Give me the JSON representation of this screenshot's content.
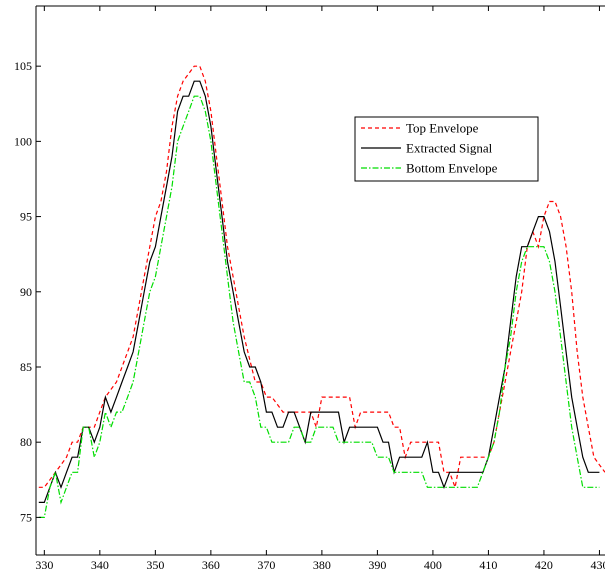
{
  "chart_data": {
    "type": "line",
    "title": "",
    "xlabel": "",
    "ylabel": "",
    "xlim": [
      328.5,
      431
    ],
    "ylim": [
      72.5,
      109
    ],
    "xticks": [
      330,
      340,
      350,
      360,
      370,
      380,
      390,
      400,
      410,
      420,
      430
    ],
    "xtick_labels": [
      "330",
      "340",
      "350",
      "360",
      "370",
      "380",
      "390",
      "400",
      "410",
      "420",
      "430"
    ],
    "yticks": [
      75,
      80,
      85,
      90,
      95,
      100,
      105
    ],
    "ytick_labels": [
      "75",
      "80",
      "85",
      "90",
      "95",
      "100",
      "105"
    ],
    "grid": false,
    "legend_position": "upper-right-center",
    "series": [
      {
        "name": "Top Envelope",
        "color": "#ff0000",
        "style": "dashed",
        "points": [
          [
            329,
            77
          ],
          [
            330,
            77
          ],
          [
            331,
            77.5
          ],
          [
            332,
            78
          ],
          [
            333,
            78.5
          ],
          [
            334,
            79
          ],
          [
            335,
            80
          ],
          [
            336,
            80
          ],
          [
            337,
            81
          ],
          [
            338,
            81
          ],
          [
            339,
            81
          ],
          [
            340,
            82
          ],
          [
            341,
            83
          ],
          [
            342,
            83.5
          ],
          [
            343,
            84
          ],
          [
            344,
            85
          ],
          [
            345,
            86
          ],
          [
            346,
            87
          ],
          [
            347,
            89
          ],
          [
            348,
            91
          ],
          [
            349,
            93
          ],
          [
            350,
            95
          ],
          [
            351,
            96
          ],
          [
            352,
            98
          ],
          [
            353,
            101
          ],
          [
            354,
            103
          ],
          [
            355,
            104
          ],
          [
            356,
            104.5
          ],
          [
            357,
            105
          ],
          [
            358,
            105
          ],
          [
            359,
            104
          ],
          [
            360,
            102
          ],
          [
            361,
            99
          ],
          [
            362,
            96
          ],
          [
            363,
            93
          ],
          [
            364,
            91
          ],
          [
            365,
            89
          ],
          [
            366,
            87
          ],
          [
            367,
            85.5
          ],
          [
            368,
            84
          ],
          [
            369,
            84
          ],
          [
            370,
            83
          ],
          [
            371,
            83
          ],
          [
            372,
            82.5
          ],
          [
            373,
            82
          ],
          [
            374,
            82
          ],
          [
            375,
            82
          ],
          [
            376,
            82
          ],
          [
            377,
            82
          ],
          [
            378,
            82
          ],
          [
            379,
            81
          ],
          [
            380,
            83
          ],
          [
            381,
            83
          ],
          [
            382,
            83
          ],
          [
            383,
            83
          ],
          [
            384,
            83
          ],
          [
            385,
            83
          ],
          [
            386,
            81
          ],
          [
            387,
            82
          ],
          [
            388,
            82
          ],
          [
            389,
            82
          ],
          [
            390,
            82
          ],
          [
            391,
            82
          ],
          [
            392,
            82
          ],
          [
            393,
            81
          ],
          [
            394,
            81
          ],
          [
            395,
            79
          ],
          [
            396,
            80
          ],
          [
            397,
            80
          ],
          [
            398,
            80
          ],
          [
            399,
            80
          ],
          [
            400,
            80
          ],
          [
            401,
            80
          ],
          [
            402,
            78
          ],
          [
            403,
            78
          ],
          [
            404,
            77
          ],
          [
            405,
            79
          ],
          [
            406,
            79
          ],
          [
            407,
            79
          ],
          [
            408,
            79
          ],
          [
            409,
            79
          ],
          [
            410,
            79
          ],
          [
            411,
            80
          ],
          [
            412,
            82
          ],
          [
            413,
            84
          ],
          [
            414,
            86
          ],
          [
            415,
            88
          ],
          [
            416,
            90
          ],
          [
            417,
            93
          ],
          [
            418,
            94
          ],
          [
            419,
            93
          ],
          [
            420,
            95
          ],
          [
            421,
            96
          ],
          [
            422,
            96
          ],
          [
            423,
            95
          ],
          [
            424,
            93
          ],
          [
            425,
            90
          ],
          [
            426,
            86
          ],
          [
            427,
            83
          ],
          [
            428,
            81
          ],
          [
            429,
            79
          ],
          [
            430,
            78.5
          ],
          [
            431,
            78
          ]
        ]
      },
      {
        "name": "Extracted Signal",
        "color": "#000000",
        "style": "solid",
        "points": [
          [
            329,
            76
          ],
          [
            330,
            76
          ],
          [
            331,
            77
          ],
          [
            332,
            78
          ],
          [
            333,
            77
          ],
          [
            334,
            78
          ],
          [
            335,
            79
          ],
          [
            336,
            79
          ],
          [
            337,
            81
          ],
          [
            338,
            81
          ],
          [
            339,
            80
          ],
          [
            340,
            81
          ],
          [
            341,
            83
          ],
          [
            342,
            82
          ],
          [
            343,
            83
          ],
          [
            344,
            84
          ],
          [
            345,
            85
          ],
          [
            346,
            86
          ],
          [
            347,
            88
          ],
          [
            348,
            90
          ],
          [
            349,
            92
          ],
          [
            350,
            93
          ],
          [
            351,
            95
          ],
          [
            352,
            97
          ],
          [
            353,
            99
          ],
          [
            354,
            102
          ],
          [
            355,
            103
          ],
          [
            356,
            103
          ],
          [
            357,
            104
          ],
          [
            358,
            104
          ],
          [
            359,
            103
          ],
          [
            360,
            101
          ],
          [
            361,
            98
          ],
          [
            362,
            95
          ],
          [
            363,
            92
          ],
          [
            364,
            90
          ],
          [
            365,
            88
          ],
          [
            366,
            86
          ],
          [
            367,
            85
          ],
          [
            368,
            85
          ],
          [
            369,
            84
          ],
          [
            370,
            82
          ],
          [
            371,
            82
          ],
          [
            372,
            81
          ],
          [
            373,
            81
          ],
          [
            374,
            82
          ],
          [
            375,
            82
          ],
          [
            376,
            81
          ],
          [
            377,
            80
          ],
          [
            378,
            82
          ],
          [
            379,
            82
          ],
          [
            380,
            82
          ],
          [
            381,
            82
          ],
          [
            382,
            82
          ],
          [
            383,
            82
          ],
          [
            384,
            80
          ],
          [
            385,
            81
          ],
          [
            386,
            81
          ],
          [
            387,
            81
          ],
          [
            388,
            81
          ],
          [
            389,
            81
          ],
          [
            390,
            81
          ],
          [
            391,
            80
          ],
          [
            392,
            80
          ],
          [
            393,
            78
          ],
          [
            394,
            79
          ],
          [
            395,
            79
          ],
          [
            396,
            79
          ],
          [
            397,
            79
          ],
          [
            398,
            79
          ],
          [
            399,
            80
          ],
          [
            400,
            78
          ],
          [
            401,
            78
          ],
          [
            402,
            77
          ],
          [
            403,
            78
          ],
          [
            404,
            78
          ],
          [
            405,
            78
          ],
          [
            406,
            78
          ],
          [
            407,
            78
          ],
          [
            408,
            78
          ],
          [
            409,
            78
          ],
          [
            410,
            79
          ],
          [
            411,
            81
          ],
          [
            412,
            83
          ],
          [
            413,
            85
          ],
          [
            414,
            88
          ],
          [
            415,
            91
          ],
          [
            416,
            93
          ],
          [
            417,
            93
          ],
          [
            418,
            94
          ],
          [
            419,
            95
          ],
          [
            420,
            95
          ],
          [
            421,
            94
          ],
          [
            422,
            92
          ],
          [
            423,
            89
          ],
          [
            424,
            86
          ],
          [
            425,
            83
          ],
          [
            426,
            81
          ],
          [
            427,
            79
          ],
          [
            428,
            78
          ],
          [
            429,
            78
          ],
          [
            430,
            78
          ]
        ]
      },
      {
        "name": "Bottom Envelope",
        "color": "#00dd00",
        "style": "dashdot",
        "points": [
          [
            329,
            75
          ],
          [
            330,
            75
          ],
          [
            331,
            77
          ],
          [
            332,
            78
          ],
          [
            333,
            76
          ],
          [
            334,
            77
          ],
          [
            335,
            78
          ],
          [
            336,
            78
          ],
          [
            337,
            81
          ],
          [
            338,
            81
          ],
          [
            339,
            79
          ],
          [
            340,
            80
          ],
          [
            341,
            82
          ],
          [
            342,
            81
          ],
          [
            343,
            82
          ],
          [
            344,
            82
          ],
          [
            345,
            83
          ],
          [
            346,
            84
          ],
          [
            347,
            86
          ],
          [
            348,
            88
          ],
          [
            349,
            90
          ],
          [
            350,
            91
          ],
          [
            351,
            93
          ],
          [
            352,
            95
          ],
          [
            353,
            97
          ],
          [
            354,
            100
          ],
          [
            355,
            101
          ],
          [
            356,
            102
          ],
          [
            357,
            103
          ],
          [
            358,
            103
          ],
          [
            359,
            102
          ],
          [
            360,
            100
          ],
          [
            361,
            97
          ],
          [
            362,
            94
          ],
          [
            363,
            91
          ],
          [
            364,
            88
          ],
          [
            365,
            86
          ],
          [
            366,
            84
          ],
          [
            367,
            84
          ],
          [
            368,
            83
          ],
          [
            369,
            81
          ],
          [
            370,
            81
          ],
          [
            371,
            80
          ],
          [
            372,
            80
          ],
          [
            373,
            80
          ],
          [
            374,
            80
          ],
          [
            375,
            81
          ],
          [
            376,
            81
          ],
          [
            377,
            80
          ],
          [
            378,
            80
          ],
          [
            379,
            81
          ],
          [
            380,
            81
          ],
          [
            381,
            81
          ],
          [
            382,
            81
          ],
          [
            383,
            80
          ],
          [
            384,
            80
          ],
          [
            385,
            80
          ],
          [
            386,
            80
          ],
          [
            387,
            80
          ],
          [
            388,
            80
          ],
          [
            389,
            80
          ],
          [
            390,
            79
          ],
          [
            391,
            79
          ],
          [
            392,
            79
          ],
          [
            393,
            78
          ],
          [
            394,
            78
          ],
          [
            395,
            78
          ],
          [
            396,
            78
          ],
          [
            397,
            78
          ],
          [
            398,
            78
          ],
          [
            399,
            77
          ],
          [
            400,
            77
          ],
          [
            401,
            77
          ],
          [
            402,
            77
          ],
          [
            403,
            77
          ],
          [
            404,
            77
          ],
          [
            405,
            77
          ],
          [
            406,
            77
          ],
          [
            407,
            77
          ],
          [
            408,
            77
          ],
          [
            409,
            78
          ],
          [
            410,
            79
          ],
          [
            411,
            80
          ],
          [
            412,
            82
          ],
          [
            413,
            85
          ],
          [
            414,
            87
          ],
          [
            415,
            90
          ],
          [
            416,
            92
          ],
          [
            417,
            93
          ],
          [
            418,
            93
          ],
          [
            419,
            93
          ],
          [
            420,
            93
          ],
          [
            421,
            92
          ],
          [
            422,
            90
          ],
          [
            423,
            87
          ],
          [
            424,
            84
          ],
          [
            425,
            81
          ],
          [
            426,
            79
          ],
          [
            427,
            77
          ],
          [
            428,
            77
          ],
          [
            429,
            77
          ],
          [
            430,
            77
          ]
        ]
      }
    ]
  }
}
